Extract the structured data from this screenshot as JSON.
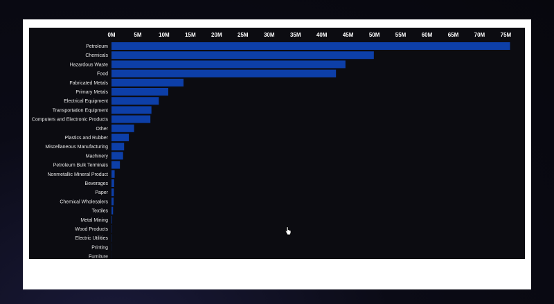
{
  "chart_data": {
    "type": "bar",
    "orientation": "horizontal",
    "axis_position": "top",
    "xlim": [
      0,
      76000000
    ],
    "ticks": [
      {
        "value": 0,
        "label": "0M"
      },
      {
        "value": 5000000,
        "label": "5M"
      },
      {
        "value": 10000000,
        "label": "10M"
      },
      {
        "value": 15000000,
        "label": "15M"
      },
      {
        "value": 20000000,
        "label": "20M"
      },
      {
        "value": 25000000,
        "label": "25M"
      },
      {
        "value": 30000000,
        "label": "30M"
      },
      {
        "value": 35000000,
        "label": "35M"
      },
      {
        "value": 40000000,
        "label": "40M"
      },
      {
        "value": 45000000,
        "label": "45M"
      },
      {
        "value": 50000000,
        "label": "50M"
      },
      {
        "value": 55000000,
        "label": "55M"
      },
      {
        "value": 60000000,
        "label": "60M"
      },
      {
        "value": 65000000,
        "label": "65M"
      },
      {
        "value": 70000000,
        "label": "70M"
      },
      {
        "value": 75000000,
        "label": "75M"
      }
    ],
    "categories": [
      "Petroleum",
      "Chemicals",
      "Hazardous Waste",
      "Food",
      "Fabricated Metals",
      "Primary Metals",
      "Electrical Equipment",
      "Transportation Equipment",
      "Computers and Electronic Products",
      "Other",
      "Plastics and Rubber",
      "Miscellaneous Manufacturing",
      "Machinery",
      "Petroleum Bulk Terminals",
      "Nonmetallic Mineral Product",
      "Beverages",
      "Paper",
      "Chemical Wholesalers",
      "Textiles",
      "Metal Mining",
      "Wood Products",
      "Electric Utilities",
      "Printing",
      "Furniture"
    ],
    "values": [
      75800000,
      49900000,
      44500000,
      42700000,
      13700000,
      10800000,
      9000000,
      7600000,
      7400000,
      4300000,
      3300000,
      2400000,
      2200000,
      1600000,
      600000,
      500000,
      450000,
      400000,
      300000,
      100000,
      50000,
      40000,
      20000,
      10000
    ],
    "bar_color": "#0d3fa8",
    "grid": false
  }
}
